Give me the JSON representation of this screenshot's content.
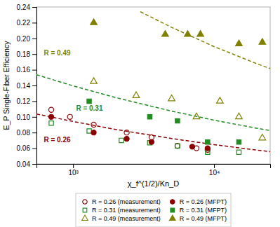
{
  "chart_data": {
    "type": "scatter",
    "xlabel": "χ_f^(1/2)/Kn_D",
    "ylabel": "E_P Single-Fiber Efficiency",
    "log": "x",
    "grid": false,
    "legend": "bottom",
    "xlim": [
      550,
      25000
    ],
    "xticks": [
      {
        "value": 1000,
        "label": "10³"
      },
      {
        "value": 10000,
        "label": "10⁴"
      }
    ],
    "ylim": [
      0.04,
      0.24
    ],
    "yticks": [
      0.04,
      0.06,
      0.08,
      {
        "value": 0.1,
        "label": "0.10"
      },
      0.12,
      0.14,
      0.16,
      0.18,
      {
        "value": 0.2,
        "label": "0.20"
      },
      0.22,
      0.24
    ],
    "series": [
      {
        "type": "line",
        "line_style": "dashed",
        "color": "#8B0000",
        "x": [
          550,
          1000,
          2000,
          5000,
          10000,
          20000,
          25000
        ],
        "values": [
          0.1037,
          0.0941,
          0.084,
          0.0724,
          0.0646,
          0.0577,
          0.0557
        ]
      },
      {
        "type": "line",
        "line_style": "dashed",
        "color": "#228B22",
        "x": [
          550,
          1000,
          2000,
          5000,
          10000,
          20000,
          25000
        ],
        "values": [
          0.1537,
          0.1395,
          0.1246,
          0.1073,
          0.0958,
          0.0856,
          0.0825
        ]
      },
      {
        "type": "line",
        "line_style": "dashed",
        "color": "#808000",
        "x": [
          3000,
          5000,
          10000,
          20000,
          25000
        ],
        "values": [
          0.234,
          0.214,
          0.1896,
          0.1679,
          0.1615
        ]
      },
      {
        "name": "R = 0.26 (measurement)",
        "type": "scatter",
        "marker": "circle-open",
        "color": "#8B0000",
        "x": [
          700,
          950,
          1400,
          2400,
          3600,
          5500,
          7500,
          9000
        ],
        "values": [
          0.109,
          0.1,
          0.09,
          0.08,
          0.074,
          0.063,
          0.06,
          0.058
        ]
      },
      {
        "name": "R = 0.31 (measurement)",
        "type": "scatter",
        "marker": "square-open",
        "color": "#228B22",
        "x": [
          700,
          1300,
          2200,
          3500,
          5500,
          9000,
          15000
        ],
        "values": [
          0.092,
          0.082,
          0.07,
          0.067,
          0.063,
          0.055,
          0.055
        ]
      },
      {
        "name": "R = 0.49 (measurement)",
        "type": "scatter",
        "marker": "triangle-open",
        "color": "#808000",
        "x": [
          1400,
          2800,
          5000,
          7500,
          11000,
          15000,
          22000
        ],
        "values": [
          0.145,
          0.127,
          0.123,
          0.1,
          0.12,
          0.1,
          0.073
        ]
      },
      {
        "name": "R = 0.26 (MFPT)",
        "type": "scatter",
        "marker": "circle",
        "color": "#8B0000",
        "x": [
          700,
          1400,
          2400,
          3600,
          7000,
          9000
        ],
        "values": [
          0.1,
          0.08,
          0.072,
          0.068,
          0.062,
          0.06
        ]
      },
      {
        "name": "R = 0.31 (MFPT)",
        "type": "scatter",
        "marker": "square",
        "color": "#228B22",
        "x": [
          1300,
          3500,
          5500,
          9000,
          15000
        ],
        "values": [
          0.12,
          0.1,
          0.095,
          0.068,
          0.068
        ]
      },
      {
        "name": "R = 0.49 (MFPT)",
        "type": "scatter",
        "marker": "triangle",
        "color": "#808000",
        "x": [
          1400,
          4500,
          6500,
          8000,
          15000,
          22000
        ],
        "values": [
          0.22,
          0.205,
          0.205,
          0.205,
          0.193,
          0.195
        ]
      }
    ],
    "annotations": [
      {
        "text": "R = 0.49",
        "x": 620,
        "y": 0.178,
        "color": "#808000"
      },
      {
        "text": "R = 0.31",
        "x": 1050,
        "y": 0.108,
        "color": "#228B22"
      },
      {
        "text": "R = 0.26",
        "x": 620,
        "y": 0.068,
        "color": "#8B0000"
      }
    ]
  }
}
